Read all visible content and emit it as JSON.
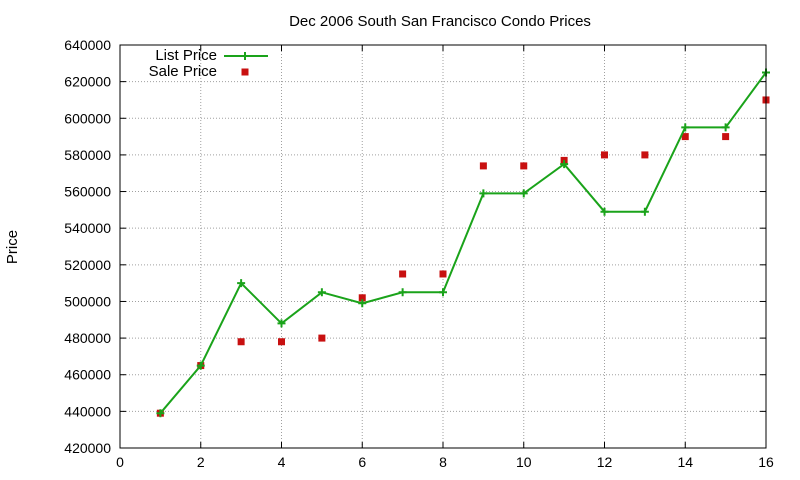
{
  "chart_data": {
    "type": "line",
    "title": "Dec 2006 South San Francisco Condo Prices",
    "xlabel": "",
    "ylabel": "Price",
    "xlim": [
      0,
      16
    ],
    "ylim": [
      420000,
      640000
    ],
    "x_ticks": [
      0,
      2,
      4,
      6,
      8,
      10,
      12,
      14,
      16
    ],
    "y_ticks": [
      420000,
      440000,
      460000,
      480000,
      500000,
      520000,
      540000,
      560000,
      580000,
      600000,
      620000,
      640000
    ],
    "grid": true,
    "legend_position": "top-left",
    "series": [
      {
        "name": "List Price",
        "style": "line+cross",
        "color": "#1aa31a",
        "x": [
          1,
          2,
          3,
          4,
          5,
          6,
          7,
          8,
          9,
          10,
          11,
          12,
          13,
          14,
          15,
          16
        ],
        "values": [
          439000,
          465000,
          510000,
          488000,
          505000,
          499000,
          505000,
          505000,
          559000,
          559000,
          575000,
          549000,
          549000,
          595000,
          595000,
          625000
        ]
      },
      {
        "name": "Sale Price",
        "style": "square",
        "color": "#c81010",
        "x": [
          1,
          2,
          3,
          4,
          5,
          6,
          7,
          8,
          9,
          10,
          11,
          12,
          13,
          14,
          15,
          16
        ],
        "values": [
          439000,
          465000,
          478000,
          478000,
          480000,
          502000,
          515000,
          515000,
          574000,
          574000,
          577000,
          580000,
          580000,
          590000,
          590000,
          610000
        ]
      }
    ]
  }
}
